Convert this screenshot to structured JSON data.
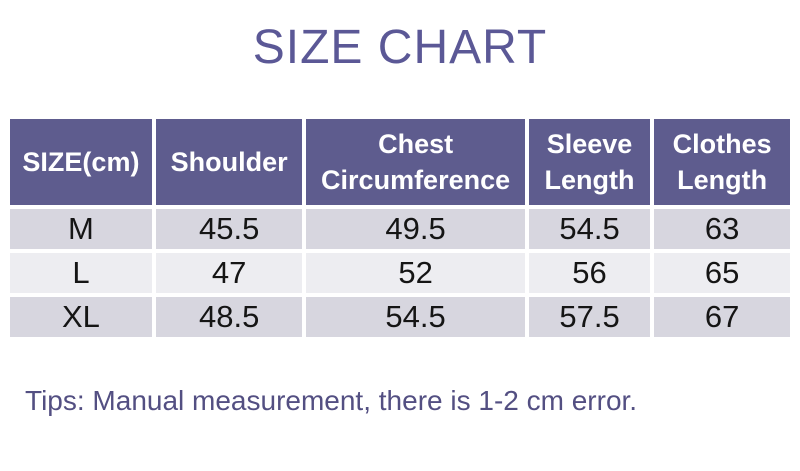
{
  "page": {
    "title": "SIZE CHART",
    "tip": "Tips: Manual measurement, there is 1-2 cm error."
  },
  "table": {
    "columns": [
      "SIZE(cm)",
      "Shoulder",
      "Chest Circumference",
      "Sleeve Length",
      "Clothes Length"
    ],
    "rows": [
      {
        "size": "M",
        "shoulder": "45.5",
        "chest": "49.5",
        "sleeve": "54.5",
        "clothes": "63"
      },
      {
        "size": "L",
        "shoulder": "47",
        "chest": "52",
        "sleeve": "56",
        "clothes": "65"
      },
      {
        "size": "XL",
        "shoulder": "48.5",
        "chest": "54.5",
        "sleeve": "57.5",
        "clothes": "67"
      }
    ]
  },
  "colors": {
    "title_purple": "#5b5896",
    "header_bg": "#5e5c8e",
    "header_text": "#ffffff",
    "row_gray": "#d7d6df",
    "row_light": "#ededf1",
    "tip_purple": "#534f82"
  }
}
